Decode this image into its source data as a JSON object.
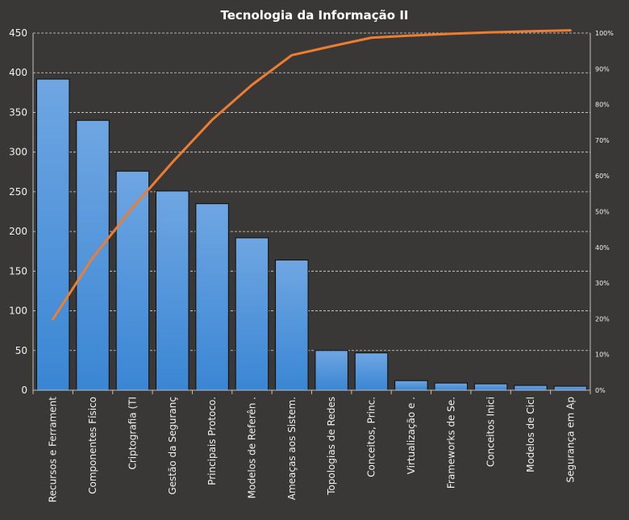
{
  "chart_data": {
    "type": "bar",
    "title": "Tecnologia da Informação II",
    "categories": [
      "Recursos e Ferrament",
      "Componentes Físico",
      "Criptografia (TI",
      "Gestão da Seguranç",
      "Principais Protoco.",
      "Modelos de Referên .",
      "Ameaças aos Sistem.",
      "Topologias de Redes",
      "Conceitos, Princ.",
      "Virtualização e .",
      "Frameworks  de Se.",
      "Conceitos Inici",
      "Modelos de Cicl",
      "Segurança em Ap"
    ],
    "series": [
      {
        "type": "bar",
        "color": "#4f94db",
        "values": [
          392,
          340,
          276,
          251,
          235,
          192,
          164,
          50,
          47,
          12,
          9,
          8,
          6,
          5
        ]
      },
      {
        "type": "line",
        "axis": "secondary",
        "color": "#ed7d31",
        "values": [
          19.9,
          37.1,
          51.1,
          63.8,
          75.7,
          85.5,
          93.8,
          96.3,
          98.7,
          99.3,
          99.8,
          100.2,
          100.5,
          100.75
        ]
      }
    ],
    "ylim": [
      0,
      450
    ],
    "yticks": [
      "0",
      "50",
      "100",
      "150",
      "200",
      "250",
      "300",
      "350",
      "400",
      "450"
    ],
    "y2lim": [
      0,
      100
    ],
    "y2ticks": [
      "0%",
      "10%",
      "20%",
      "30%",
      "40%",
      "50%",
      "60%",
      "70%",
      "80%",
      "90%",
      "100%"
    ],
    "grid": true,
    "legend": "none"
  }
}
